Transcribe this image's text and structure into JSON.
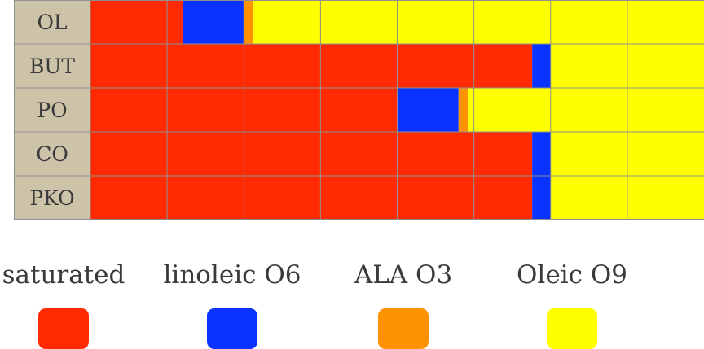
{
  "chart_data": {
    "type": "bar",
    "orientation": "horizontal",
    "stacked": true,
    "title": "",
    "xlabel": "",
    "ylabel": "",
    "xlim": [
      0,
      100
    ],
    "grid": true,
    "legend_position": "bottom",
    "categories": [
      "OL",
      "BUT",
      "PO",
      "CO",
      "PKO"
    ],
    "series": [
      {
        "name": "saturated",
        "color": "#ff2a00",
        "values": [
          15,
          72,
          50,
          72,
          72
        ]
      },
      {
        "name": "linoleic O6",
        "color": "#0a33ff",
        "values": [
          10,
          3,
          10,
          3,
          3
        ]
      },
      {
        "name": "ALA O3",
        "color": "#ff9200",
        "values": [
          1.5,
          0,
          1.5,
          0,
          0
        ]
      },
      {
        "name": "Oleic O9",
        "color": "#ffff00",
        "values": [
          73.5,
          25,
          38.5,
          25,
          25
        ]
      }
    ],
    "label_background": "#cdc3a8",
    "grid_color": "#8f8f8f"
  }
}
